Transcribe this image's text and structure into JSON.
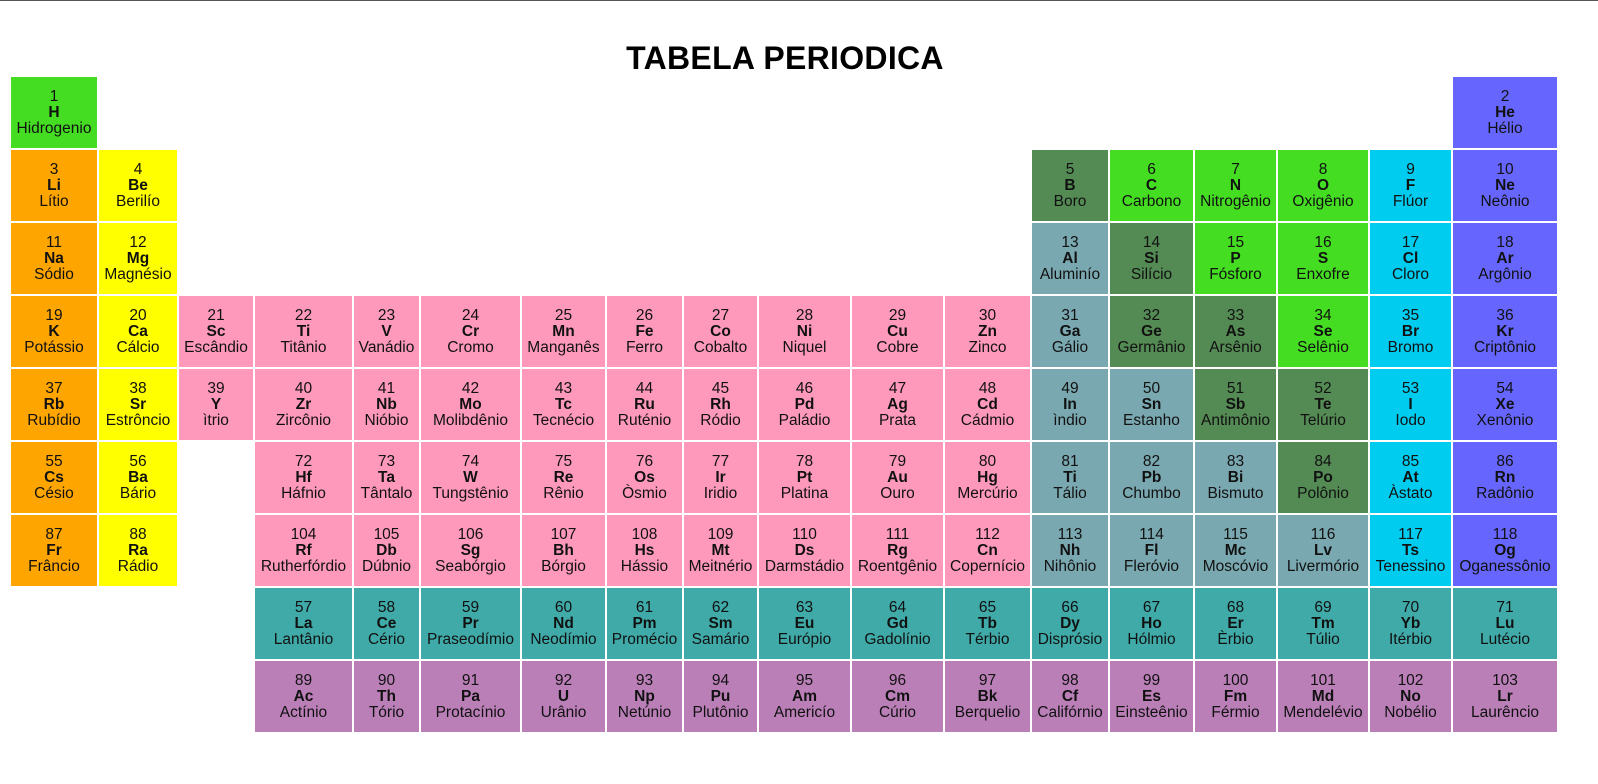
{
  "title": "TABELA PERIODICA",
  "colors": {
    "alkali": "#ffa500",
    "alkaline": "#ffff00",
    "transition": "#ff99bb",
    "basic": "#7aa8b0",
    "metalloid": "#548a54",
    "nonmetal": "#44dd22",
    "halogen": "#00ccf0",
    "noble": "#6666ff",
    "lanthanide": "#3faaa8",
    "actinide": "#bb7fb8"
  },
  "columns": [
    86,
    78,
    74,
    97,
    65,
    99,
    83,
    75,
    73,
    91,
    91,
    85,
    76,
    83,
    81,
    90,
    81,
    104
  ],
  "rows": [
    [
      {
        "n": "1",
        "s": "H",
        "name": "Hidrogenio",
        "c": "nonmetal"
      },
      {
        "span": 16
      },
      {
        "n": "2",
        "s": "He",
        "name": "Hélio",
        "c": "noble"
      }
    ],
    [
      {
        "n": "3",
        "s": "Li",
        "name": "Lítio",
        "c": "alkali"
      },
      {
        "n": "4",
        "s": "Be",
        "name": "Berilío",
        "c": "alkaline"
      },
      {
        "span": 10
      },
      {
        "n": "5",
        "s": "B",
        "name": "Boro",
        "c": "metalloid"
      },
      {
        "n": "6",
        "s": "C",
        "name": "Carbono",
        "c": "nonmetal"
      },
      {
        "n": "7",
        "s": "N",
        "name": "Nitrogênio",
        "c": "nonmetal"
      },
      {
        "n": "8",
        "s": "O",
        "name": "Oxigênio",
        "c": "nonmetal"
      },
      {
        "n": "9",
        "s": "F",
        "name": "Flúor",
        "c": "halogen"
      },
      {
        "n": "10",
        "s": "Ne",
        "name": "Neônio",
        "c": "noble"
      }
    ],
    [
      {
        "n": "11",
        "s": "Na",
        "name": "Sódio",
        "c": "alkali"
      },
      {
        "n": "12",
        "s": "Mg",
        "name": "Magnésio",
        "c": "alkaline"
      },
      {
        "span": 10
      },
      {
        "n": "13",
        "s": "Al",
        "name": "Aluminío",
        "c": "basic"
      },
      {
        "n": "14",
        "s": "Si",
        "name": "Silício",
        "c": "metalloid"
      },
      {
        "n": "15",
        "s": "P",
        "name": "Fósforo",
        "c": "nonmetal"
      },
      {
        "n": "16",
        "s": "S",
        "name": "Enxofre",
        "c": "nonmetal"
      },
      {
        "n": "17",
        "s": "Cl",
        "name": "Cloro",
        "c": "halogen"
      },
      {
        "n": "18",
        "s": "Ar",
        "name": "Argônio",
        "c": "noble"
      }
    ],
    [
      {
        "n": "19",
        "s": "K",
        "name": "Potássio",
        "c": "alkali"
      },
      {
        "n": "20",
        "s": "Ca",
        "name": "Cálcio",
        "c": "alkaline"
      },
      {
        "n": "21",
        "s": "Sc",
        "name": "Escândio",
        "c": "transition"
      },
      {
        "n": "22",
        "s": "Ti",
        "name": "Titânio",
        "c": "transition"
      },
      {
        "n": "23",
        "s": "V",
        "name": "Vanádio",
        "c": "transition"
      },
      {
        "n": "24",
        "s": "Cr",
        "name": "Cromo",
        "c": "transition"
      },
      {
        "n": "25",
        "s": "Mn",
        "name": "Manganês",
        "c": "transition"
      },
      {
        "n": "26",
        "s": "Fe",
        "name": "Ferro",
        "c": "transition"
      },
      {
        "n": "27",
        "s": "Co",
        "name": "Cobalto",
        "c": "transition"
      },
      {
        "n": "28",
        "s": "Ni",
        "name": "Niquel",
        "c": "transition"
      },
      {
        "n": "29",
        "s": "Cu",
        "name": "Cobre",
        "c": "transition"
      },
      {
        "n": "30",
        "s": "Zn",
        "name": "Zinco",
        "c": "transition"
      },
      {
        "n": "31",
        "s": "Ga",
        "name": "Gálio",
        "c": "basic"
      },
      {
        "n": "32",
        "s": "Ge",
        "name": "Germânio",
        "c": "metalloid"
      },
      {
        "n": "33",
        "s": "As",
        "name": "Arsênio",
        "c": "metalloid"
      },
      {
        "n": "34",
        "s": "Se",
        "name": "Selênio",
        "c": "nonmetal"
      },
      {
        "n": "35",
        "s": "Br",
        "name": "Bromo",
        "c": "halogen"
      },
      {
        "n": "36",
        "s": "Kr",
        "name": "Criptônio",
        "c": "noble"
      }
    ],
    [
      {
        "n": "37",
        "s": "Rb",
        "name": "Rubídio",
        "c": "alkali"
      },
      {
        "n": "38",
        "s": "Sr",
        "name": "Estrôncio",
        "c": "alkaline"
      },
      {
        "n": "39",
        "s": "Y",
        "name": "ìtrio",
        "c": "transition"
      },
      {
        "n": "40",
        "s": "Zr",
        "name": "Zircônio",
        "c": "transition"
      },
      {
        "n": "41",
        "s": "Nb",
        "name": "Nióbio",
        "c": "transition"
      },
      {
        "n": "42",
        "s": "Mo",
        "name": "Molibdênio",
        "c": "transition"
      },
      {
        "n": "43",
        "s": "Tc",
        "name": "Tecnécio",
        "c": "transition"
      },
      {
        "n": "44",
        "s": "Ru",
        "name": "Ruténio",
        "c": "transition"
      },
      {
        "n": "45",
        "s": "Rh",
        "name": "Ródio",
        "c": "transition"
      },
      {
        "n": "46",
        "s": "Pd",
        "name": "Paládio",
        "c": "transition"
      },
      {
        "n": "47",
        "s": "Ag",
        "name": "Prata",
        "c": "transition"
      },
      {
        "n": "48",
        "s": "Cd",
        "name": "Cádmio",
        "c": "transition"
      },
      {
        "n": "49",
        "s": "In",
        "name": "ìndio",
        "c": "basic"
      },
      {
        "n": "50",
        "s": "Sn",
        "name": "Estanho",
        "c": "basic"
      },
      {
        "n": "51",
        "s": "Sb",
        "name": "Antimônio",
        "c": "metalloid"
      },
      {
        "n": "52",
        "s": "Te",
        "name": "Telúrio",
        "c": "metalloid"
      },
      {
        "n": "53",
        "s": "I",
        "name": "Iodo",
        "c": "halogen"
      },
      {
        "n": "54",
        "s": "Xe",
        "name": "Xenônio",
        "c": "noble"
      }
    ],
    [
      {
        "n": "55",
        "s": "Cs",
        "name": "Césio",
        "c": "alkali"
      },
      {
        "n": "56",
        "s": "Ba",
        "name": "Bário",
        "c": "alkaline"
      },
      {
        "span": 1
      },
      {
        "n": "72",
        "s": "Hf",
        "name": "Háfnio",
        "c": "transition"
      },
      {
        "n": "73",
        "s": "Ta",
        "name": "Tântalo",
        "c": "transition"
      },
      {
        "n": "74",
        "s": "W",
        "name": "Tungstênio",
        "c": "transition"
      },
      {
        "n": "75",
        "s": "Re",
        "name": "Rênio",
        "c": "transition"
      },
      {
        "n": "76",
        "s": "Os",
        "name": "Òsmio",
        "c": "transition"
      },
      {
        "n": "77",
        "s": "Ir",
        "name": "Iridio",
        "c": "transition"
      },
      {
        "n": "78",
        "s": "Pt",
        "name": "Platina",
        "c": "transition"
      },
      {
        "n": "79",
        "s": "Au",
        "name": "Ouro",
        "c": "transition"
      },
      {
        "n": "80",
        "s": "Hg",
        "name": "Mercúrio",
        "c": "transition"
      },
      {
        "n": "81",
        "s": "Ti",
        "name": "Tálio",
        "c": "basic"
      },
      {
        "n": "82",
        "s": "Pb",
        "name": "Chumbo",
        "c": "basic"
      },
      {
        "n": "83",
        "s": "Bi",
        "name": "Bismuto",
        "c": "basic"
      },
      {
        "n": "84",
        "s": "Po",
        "name": "Polônio",
        "c": "metalloid"
      },
      {
        "n": "85",
        "s": "At",
        "name": "Àstato",
        "c": "halogen"
      },
      {
        "n": "86",
        "s": "Rn",
        "name": "Radônio",
        "c": "noble"
      }
    ],
    [
      {
        "n": "87",
        "s": "Fr",
        "name": "Frâncio",
        "c": "alkali"
      },
      {
        "n": "88",
        "s": "Ra",
        "name": "Rádio",
        "c": "alkaline"
      },
      {
        "span": 1
      },
      {
        "n": "104",
        "s": "Rf",
        "name": "Rutherfórdio",
        "c": "transition"
      },
      {
        "n": "105",
        "s": "Db",
        "name": "Dúbnio",
        "c": "transition"
      },
      {
        "n": "106",
        "s": "Sg",
        "name": "Seabórgio",
        "c": "transition"
      },
      {
        "n": "107",
        "s": "Bh",
        "name": "Bórgio",
        "c": "transition"
      },
      {
        "n": "108",
        "s": "Hs",
        "name": "Hássio",
        "c": "transition"
      },
      {
        "n": "109",
        "s": "Mt",
        "name": "Meitnério",
        "c": "transition"
      },
      {
        "n": "110",
        "s": "Ds",
        "name": "Darmstádio",
        "c": "transition"
      },
      {
        "n": "111",
        "s": "Rg",
        "name": "Roentgênio",
        "c": "transition"
      },
      {
        "n": "112",
        "s": "Cn",
        "name": "Copernício",
        "c": "transition"
      },
      {
        "n": "113",
        "s": "Nh",
        "name": "Nihônio",
        "c": "basic"
      },
      {
        "n": "114",
        "s": "Fl",
        "name": "Fleróvio",
        "c": "basic"
      },
      {
        "n": "115",
        "s": "Mc",
        "name": "Moscóvio",
        "c": "basic"
      },
      {
        "n": "116",
        "s": "Lv",
        "name": "Livermório",
        "c": "basic"
      },
      {
        "n": "117",
        "s": "Ts",
        "name": "Tenessino",
        "c": "halogen"
      },
      {
        "n": "118",
        "s": "Og",
        "name": "Oganessônio",
        "c": "noble"
      }
    ],
    [
      {
        "span": 3
      },
      {
        "n": "57",
        "s": "La",
        "name": "Lantânio",
        "c": "lanthanide"
      },
      {
        "n": "58",
        "s": "Ce",
        "name": "Cério",
        "c": "lanthanide"
      },
      {
        "n": "59",
        "s": "Pr",
        "name": "Praseodímio",
        "c": "lanthanide"
      },
      {
        "n": "60",
        "s": "Nd",
        "name": "Neodímio",
        "c": "lanthanide"
      },
      {
        "n": "61",
        "s": "Pm",
        "name": "Promécio",
        "c": "lanthanide"
      },
      {
        "n": "62",
        "s": "Sm",
        "name": "Samário",
        "c": "lanthanide"
      },
      {
        "n": "63",
        "s": "Eu",
        "name": "Európio",
        "c": "lanthanide"
      },
      {
        "n": "64",
        "s": "Gd",
        "name": "Gadolínio",
        "c": "lanthanide"
      },
      {
        "n": "65",
        "s": "Tb",
        "name": "Térbio",
        "c": "lanthanide"
      },
      {
        "n": "66",
        "s": "Dy",
        "name": "Disprósio",
        "c": "lanthanide"
      },
      {
        "n": "67",
        "s": "Ho",
        "name": "Hólmio",
        "c": "lanthanide"
      },
      {
        "n": "68",
        "s": "Er",
        "name": "Èrbio",
        "c": "lanthanide"
      },
      {
        "n": "69",
        "s": "Tm",
        "name": "Túlio",
        "c": "lanthanide"
      },
      {
        "n": "70",
        "s": "Yb",
        "name": "Itérbio",
        "c": "lanthanide"
      },
      {
        "n": "71",
        "s": "Lu",
        "name": "Lutécio",
        "c": "lanthanide"
      }
    ],
    [
      {
        "span": 3
      },
      {
        "n": "89",
        "s": "Ac",
        "name": "Actínio",
        "c": "actinide"
      },
      {
        "n": "90",
        "s": "Th",
        "name": "Tório",
        "c": "actinide"
      },
      {
        "n": "91",
        "s": "Pa",
        "name": "Protacínio",
        "c": "actinide"
      },
      {
        "n": "92",
        "s": "U",
        "name": "Urânio",
        "c": "actinide"
      },
      {
        "n": "93",
        "s": "Np",
        "name": "Netúnio",
        "c": "actinide"
      },
      {
        "n": "94",
        "s": "Pu",
        "name": "Plutônio",
        "c": "actinide"
      },
      {
        "n": "95",
        "s": "Am",
        "name": "Americío",
        "c": "actinide"
      },
      {
        "n": "96",
        "s": "Cm",
        "name": "Cúrio",
        "c": "actinide"
      },
      {
        "n": "97",
        "s": "Bk",
        "name": "Berquelio",
        "c": "actinide"
      },
      {
        "n": "98",
        "s": "Cf",
        "name": "Califórnio",
        "c": "actinide"
      },
      {
        "n": "99",
        "s": "Es",
        "name": "Einsteênio",
        "c": "actinide"
      },
      {
        "n": "100",
        "s": "Fm",
        "name": "Férmio",
        "c": "actinide"
      },
      {
        "n": "101",
        "s": "Md",
        "name": "Mendelévio",
        "c": "actinide"
      },
      {
        "n": "102",
        "s": "No",
        "name": "Nobélio",
        "c": "actinide"
      },
      {
        "n": "103",
        "s": "Lr",
        "name": "Laurêncio",
        "c": "actinide"
      }
    ]
  ]
}
